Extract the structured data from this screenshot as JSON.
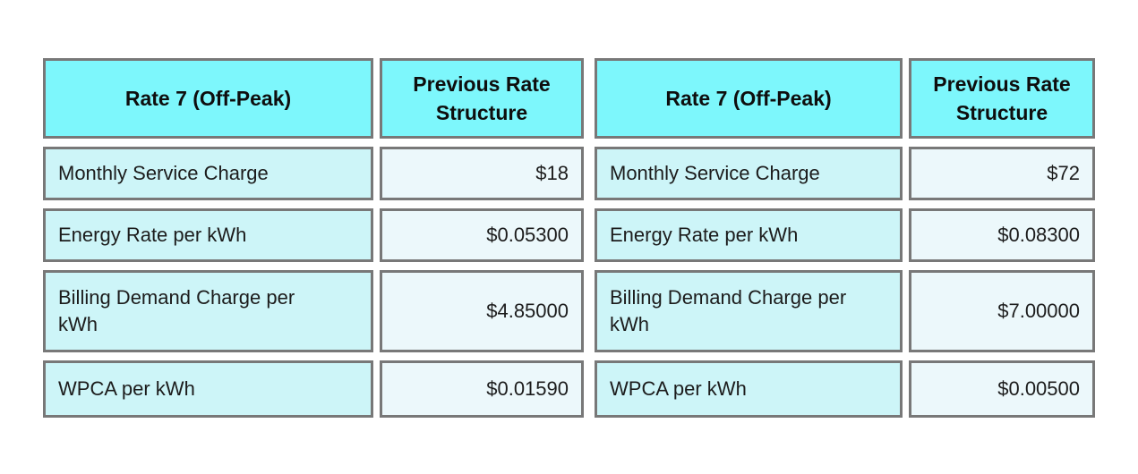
{
  "colors": {
    "header_bg": "#7df7fc",
    "label_bg": "#cdf5f8",
    "value_bg": "#ecf8fb",
    "border": "#787878",
    "text": "#1c1c1c"
  },
  "tables": [
    {
      "header": {
        "label": "Rate 7 (Off-Peak)",
        "value": "Previous Rate Structure"
      },
      "rows": [
        {
          "label": "Monthly Service Charge",
          "value": "$18"
        },
        {
          "label": "Energy Rate per kWh",
          "value": "$0.05300"
        },
        {
          "label": "Billing Demand Charge per kWh",
          "value": "$4.85000"
        },
        {
          "label": "WPCA per kWh",
          "value": "$0.01590"
        }
      ]
    },
    {
      "header": {
        "label": "Rate 7 (Off-Peak)",
        "value": "Previous Rate Structure"
      },
      "rows": [
        {
          "label": "Monthly Service Charge",
          "value": "$72"
        },
        {
          "label": "Energy Rate per kWh",
          "value": "$0.08300"
        },
        {
          "label": "Billing Demand Charge per kWh",
          "value": "$7.00000"
        },
        {
          "label": "WPCA per kWh",
          "value": "$0.00500"
        }
      ]
    }
  ]
}
